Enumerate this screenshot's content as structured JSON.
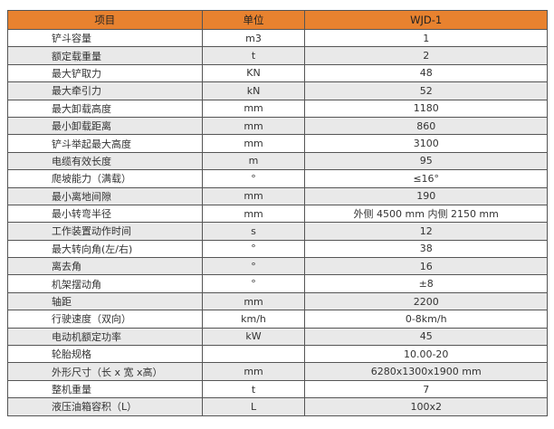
{
  "header": {
    "item": "项目",
    "unit": "单位",
    "model": "WJD-1"
  },
  "colors": {
    "header_bg": "#e8822f",
    "alt_row": "#e9e9e9"
  },
  "rows": [
    {
      "item": "铲斗容量",
      "unit": "m3",
      "value": "1"
    },
    {
      "item": "额定载重量",
      "unit": "t",
      "value": "2"
    },
    {
      "item": "最大铲取力",
      "unit": "KN",
      "value": "48"
    },
    {
      "item": "最大牵引力",
      "unit": "kN",
      "value": "52"
    },
    {
      "item": "最大卸载高度",
      "unit": "mm",
      "value": "1180"
    },
    {
      "item": "最小卸载距离",
      "unit": "mm",
      "value": "860"
    },
    {
      "item": "铲斗举起最大高度",
      "unit": "mm",
      "value": "3100"
    },
    {
      "item": "电缆有效长度",
      "unit": "m",
      "value": "95"
    },
    {
      "item": "爬坡能力（满载）",
      "unit": "°",
      "value": "≤16°"
    },
    {
      "item": "最小离地间隙",
      "unit": "mm",
      "value": "190"
    },
    {
      "item": "最小转弯半径",
      "unit": "mm",
      "value": "外侧 4500 mm 内侧 2150 mm"
    },
    {
      "item": "工作装置动作时间",
      "unit": "s",
      "value": "12"
    },
    {
      "item": "最大转向角(左/右)",
      "unit": "°",
      "value": "38"
    },
    {
      "item": "离去角",
      "unit": "°",
      "value": "16"
    },
    {
      "item": "机架摆动角",
      "unit": "°",
      "value": "±8"
    },
    {
      "item": "轴距",
      "unit": "mm",
      "value": "2200"
    },
    {
      "item": "行驶速度（双向）",
      "unit": "km/h",
      "value": "0-8km/h"
    },
    {
      "item": "电动机额定功率",
      "unit": "kW",
      "value": "45"
    },
    {
      "item": "轮胎规格",
      "unit": "",
      "value": "10.00-20"
    },
    {
      "item": "外形尺寸（长 x 宽 x高）",
      "unit": "mm",
      "value": "6280x1300x1900 mm"
    },
    {
      "item": "整机重量",
      "unit": "t",
      "value": "7"
    },
    {
      "item": "液压油箱容积（L）",
      "unit": "L",
      "value": "100x2"
    }
  ]
}
